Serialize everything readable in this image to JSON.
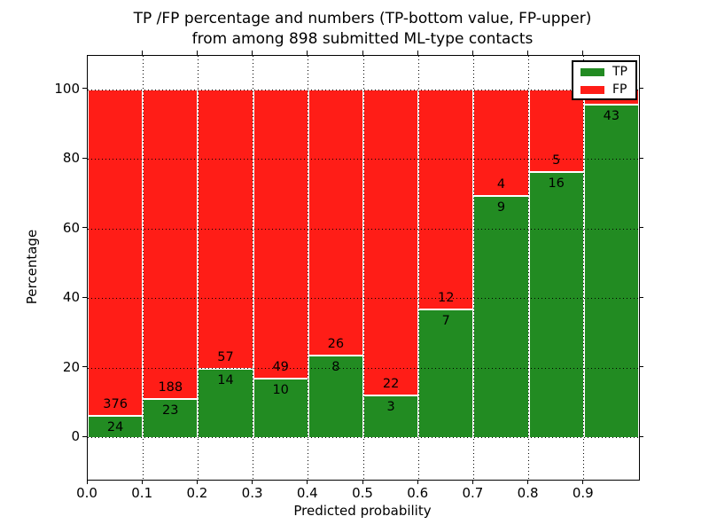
{
  "title": {
    "line1": "TP /FP percentage and numbers (TP-bottom value, FP-upper)",
    "line2": "from among 898 submitted ML-type contacts"
  },
  "axes": {
    "ylabel": "Percentage",
    "xlabel": "Predicted probability",
    "y_ticks": [
      0,
      20,
      40,
      60,
      80,
      100
    ],
    "x_tick_labels": [
      "0.0",
      "0.1",
      "0.2",
      "0.3",
      "0.4",
      "0.5",
      "0.6",
      "0.7",
      "0.8",
      "0.9"
    ],
    "grid": "dotted-black-both-axes"
  },
  "legend": {
    "position": "upper-right",
    "entries": [
      {
        "label": "TP",
        "color": "#228b22"
      },
      {
        "label": "FP",
        "color": "#ff1d17"
      }
    ]
  },
  "colors": {
    "tp_green": "#228b22",
    "fp_red": "#ff1d17",
    "background": "#ffffff",
    "text": "#000000"
  },
  "chart_data": {
    "type": "bar",
    "stacked": true,
    "normalized_to_percent": true,
    "title": "TP /FP percentage and numbers (TP-bottom value, FP-upper) from among 898 submitted ML-type contacts",
    "xlabel": "Predicted probability",
    "ylabel": "Percentage",
    "total_contacts": 898,
    "bin_edges": [
      0.0,
      0.1,
      0.2,
      0.3,
      0.4,
      0.5,
      0.6,
      0.7,
      0.8,
      0.9,
      1.0
    ],
    "xlim": [
      0.0,
      1.0
    ],
    "ylim": [
      -12,
      110
    ],
    "series": [
      {
        "name": "TP",
        "color": "#228b22",
        "counts": [
          24,
          23,
          14,
          10,
          8,
          3,
          7,
          9,
          16,
          43
        ],
        "percent": [
          6.0,
          10.9,
          19.7,
          16.9,
          23.5,
          12.0,
          36.8,
          69.2,
          76.2,
          95.6
        ]
      },
      {
        "name": "FP",
        "color": "#ff1d17",
        "counts": [
          376,
          188,
          57,
          49,
          26,
          22,
          12,
          4,
          5,
          null
        ],
        "percent": [
          94.0,
          89.1,
          80.3,
          83.1,
          76.5,
          88.0,
          63.2,
          30.8,
          23.8,
          4.4
        ]
      }
    ],
    "bar_count_labels": {
      "tp": [
        "24",
        "23",
        "14",
        "10",
        "8",
        "3",
        "7",
        "9",
        "16",
        "43"
      ],
      "fp": [
        "376",
        "188",
        "57",
        "49",
        "26",
        "22",
        "12",
        "4",
        "5",
        ""
      ]
    },
    "legend_note": "FP count label of last bar hidden behind legend"
  }
}
